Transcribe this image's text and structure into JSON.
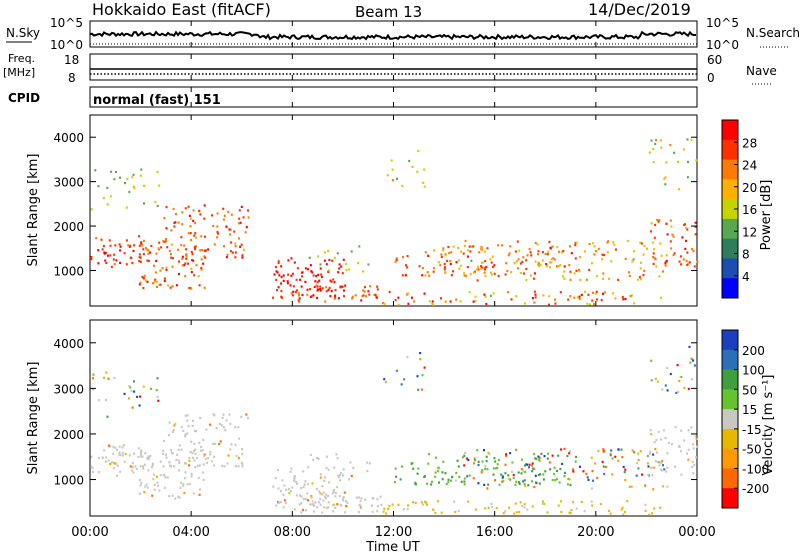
{
  "header": {
    "station": "Hokkaido East (fitACF)",
    "beam": "Beam 13",
    "date": "14/Dec/2019"
  },
  "strip_labels": {
    "nsky": "N.Sky",
    "nsky_ticks": [
      "10^5",
      "10^0"
    ],
    "nsearch": "N.Search",
    "nsearch_ticks": [
      "10^5",
      "10^0"
    ],
    "freq": "Freq.",
    "freq_unit": "[MHz]",
    "freq_ticks": [
      "18",
      "8"
    ],
    "nave": "Nave",
    "nave_ticks": [
      "60",
      "0"
    ],
    "cpid": "CPID",
    "mode": "normal (fast) 151"
  },
  "colors": {
    "power_scale": [
      "#0000ff",
      "#1b4db3",
      "#2e7d5b",
      "#59a84f",
      "#c4d400",
      "#ffb000",
      "#ff7a00",
      "#ff3000",
      "#ff0000"
    ],
    "velocity_scale": [
      "#1b3fbf",
      "#2b6fb7",
      "#3f9f3f",
      "#66c22e",
      "#c8c8c0",
      "#e6b800",
      "#ff9900",
      "#ff6a00",
      "#ff0000"
    ],
    "ground_scatter": "#c8c8c0"
  },
  "chart_data": [
    {
      "type": "heatmap",
      "panel": "power",
      "xlabel": "",
      "ylabel": "Slant Range [km]",
      "x_ticks": [
        "00:00",
        "04:00",
        "08:00",
        "12:00",
        "16:00",
        "20:00",
        "00:00"
      ],
      "y_ticks": [
        1000,
        2000,
        3000,
        4000
      ],
      "ylim": [
        200,
        4500
      ],
      "colorbar": {
        "label": "Power [dB]",
        "ticks": [
          4,
          8,
          12,
          16,
          20,
          24,
          28
        ],
        "range": [
          0,
          32
        ]
      }
    },
    {
      "type": "heatmap",
      "panel": "velocity",
      "xlabel": "Time UT",
      "ylabel": "Slant Range [km]",
      "x_ticks": [
        "00:00",
        "04:00",
        "08:00",
        "12:00",
        "16:00",
        "20:00",
        "00:00"
      ],
      "y_ticks": [
        1000,
        2000,
        3000,
        4000
      ],
      "ylim": [
        200,
        4500
      ],
      "colorbar": {
        "label": "Velocity [m s⁻¹]",
        "ticks": [
          200,
          100,
          50,
          15,
          -15,
          -50,
          -100,
          -200
        ]
      }
    }
  ]
}
